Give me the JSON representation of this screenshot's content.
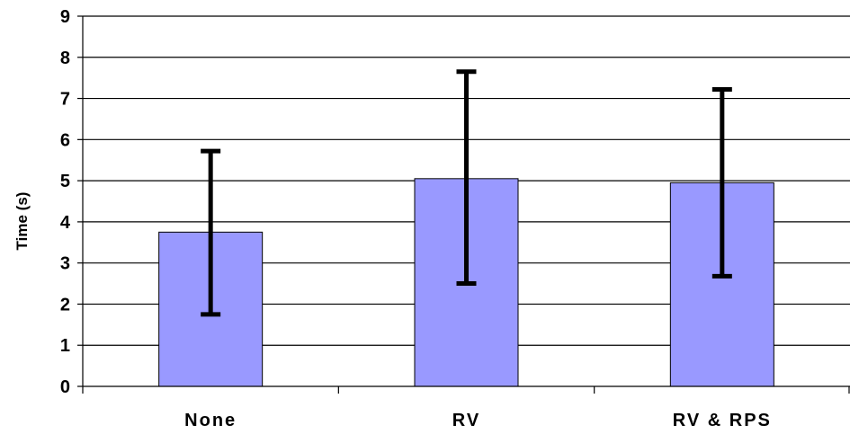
{
  "chart_data": {
    "type": "bar",
    "categories": [
      "None",
      "RV",
      "RV & RPS"
    ],
    "values": [
      3.75,
      5.05,
      4.95
    ],
    "error_bars": [
      {
        "low": 1.75,
        "high": 5.72
      },
      {
        "low": 2.5,
        "high": 7.65
      },
      {
        "low": 2.68,
        "high": 7.22
      }
    ],
    "xlabel": "",
    "ylabel": "Time (s)",
    "ylim": [
      0,
      9
    ],
    "yticks": [
      "0",
      "1",
      "2",
      "3",
      "4",
      "5",
      "6",
      "7",
      "8",
      "9"
    ],
    "grid": true,
    "colors": {
      "bar_fill": "#9999FF",
      "bar_stroke": "#000000",
      "error_bar": "#000000",
      "grid": "#000000",
      "background": "#FFFFFF"
    }
  }
}
